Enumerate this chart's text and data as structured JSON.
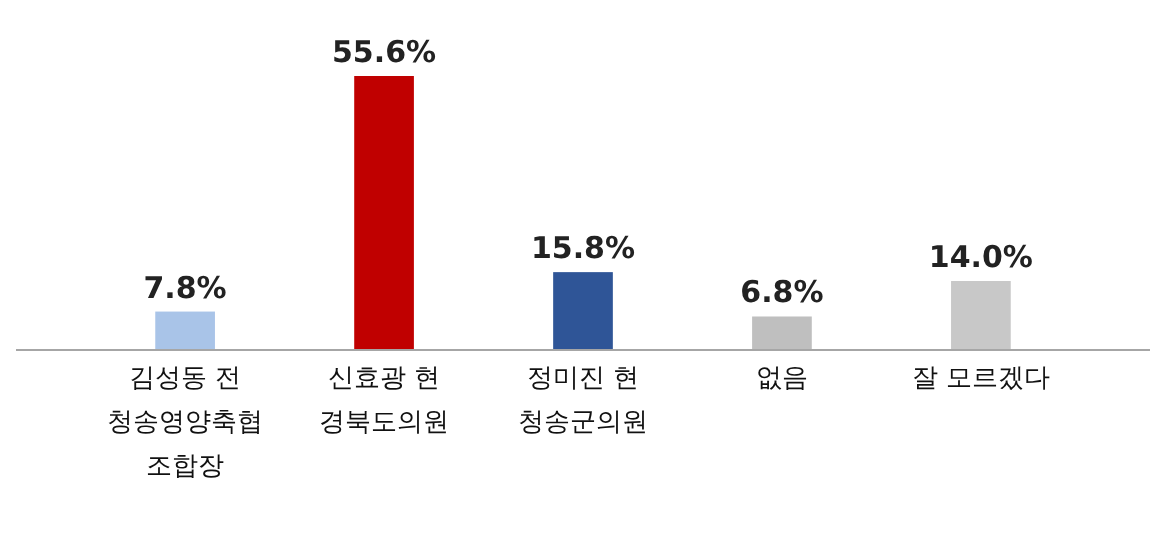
{
  "chart_data": {
    "type": "bar",
    "categories": [
      "김성동 전\n청송영양축협\n조합장",
      "신효광 현\n경북도의원",
      "정미진 현\n청송군의원",
      "없음",
      "잘 모르겠다"
    ],
    "values": [
      7.8,
      55.6,
      15.8,
      6.8,
      14.0
    ],
    "value_labels": [
      "7.8%",
      "55.6%",
      "15.8%",
      "6.8%",
      "14.0%"
    ],
    "colors": [
      "#a9c4e8",
      "#c00000",
      "#2f5597",
      "#bfbfbf",
      "#c8c8c8"
    ]
  }
}
